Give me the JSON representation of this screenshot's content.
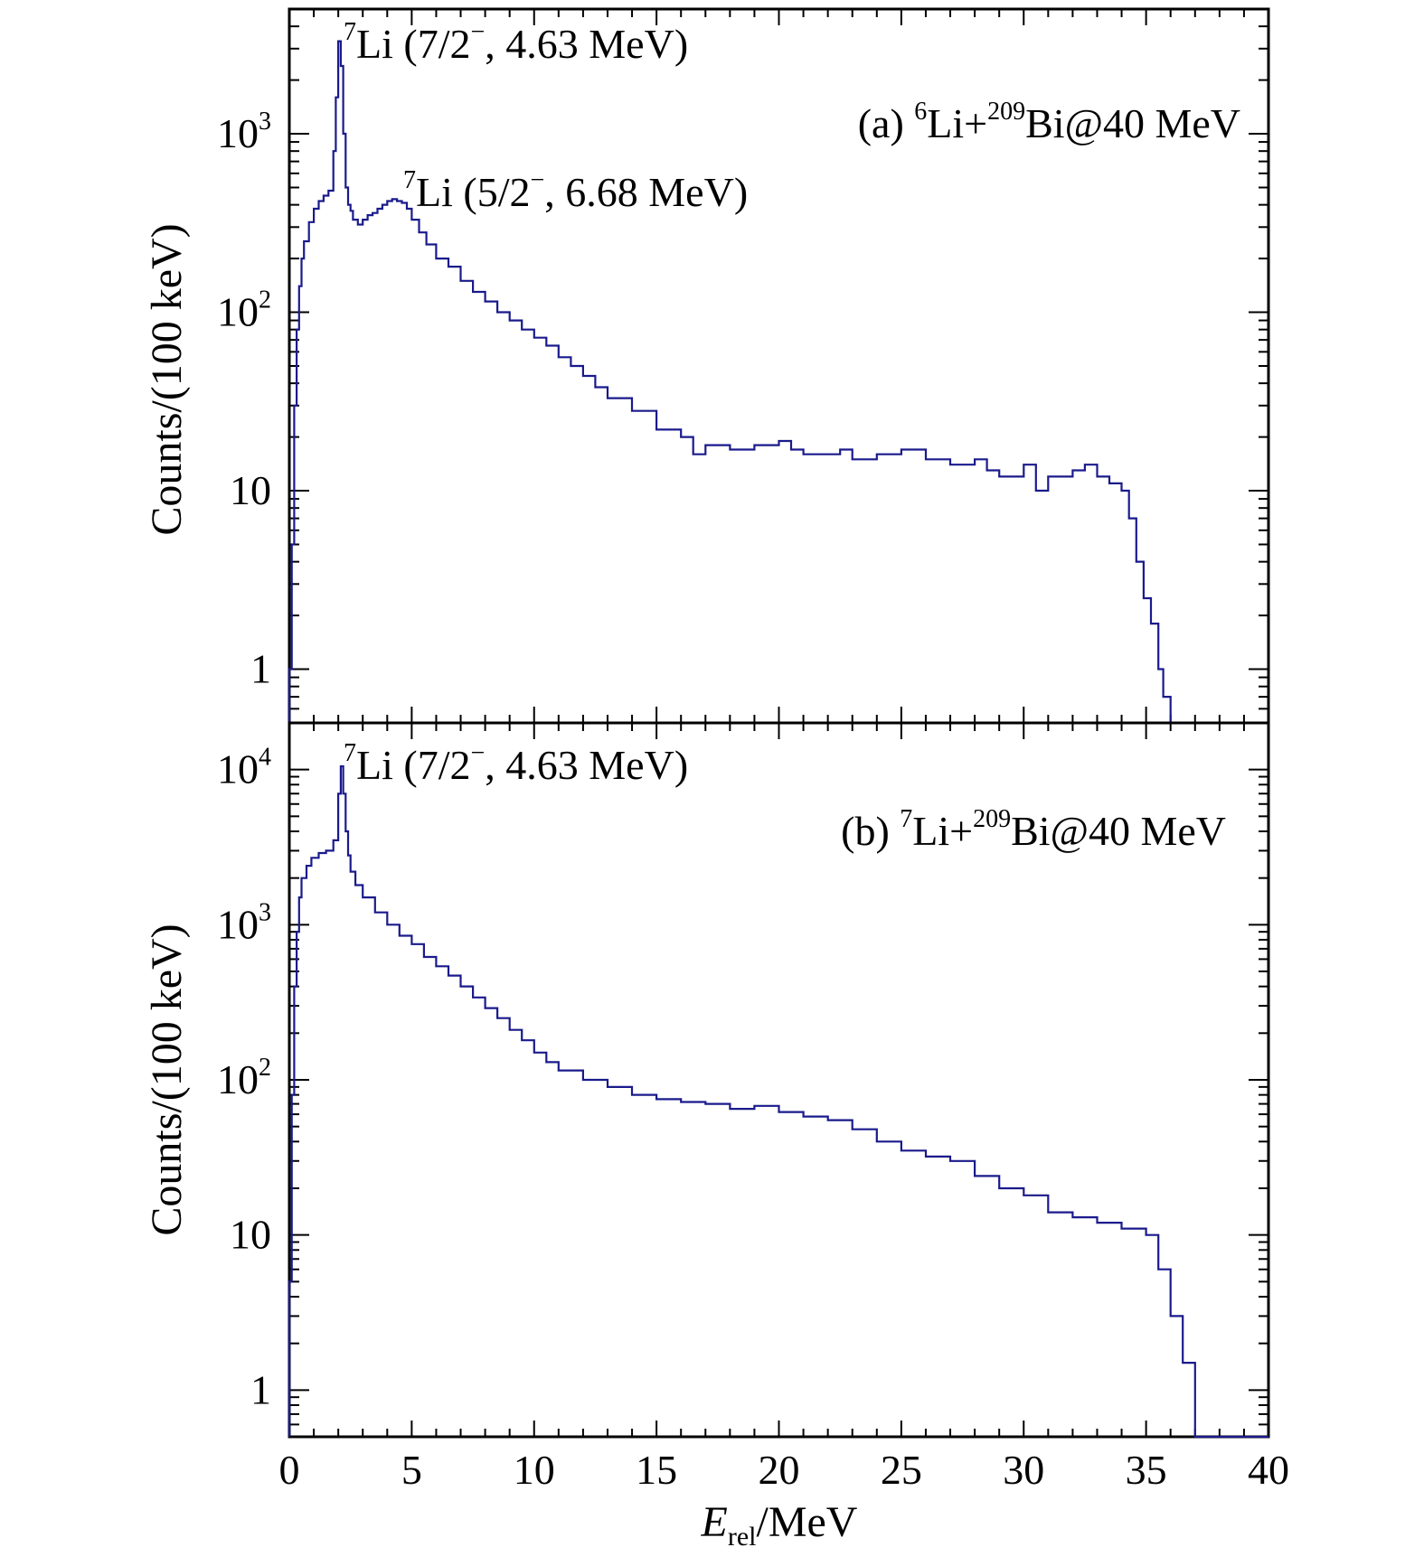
{
  "chart_data": [
    {
      "type": "histogram",
      "panel_label": "(a)",
      "reaction": {
        "projectile_mass": "6",
        "projectile": "Li",
        "target_mass": "209",
        "target": "Bi",
        "energy": "@40 MeV"
      },
      "ylabel": "Counts/(100 keV)",
      "yscale": "log",
      "ylim": [
        0.5,
        5000
      ],
      "yticks": [
        {
          "base": "1",
          "exp": ""
        },
        {
          "base": "10",
          "exp": ""
        },
        {
          "base": "10",
          "exp": "2"
        },
        {
          "base": "10",
          "exp": "3"
        }
      ],
      "ytick_values": [
        1,
        10,
        100,
        1000
      ],
      "xlim": [
        0,
        40
      ],
      "series": [
        {
          "color": "#1a1a8c",
          "x": [
            0,
            0.1,
            0.2,
            0.3,
            0.4,
            0.5,
            0.6,
            0.8,
            1.0,
            1.2,
            1.4,
            1.6,
            1.8,
            1.9,
            2.0,
            2.1,
            2.2,
            2.3,
            2.4,
            2.5,
            2.6,
            2.8,
            3.0,
            3.2,
            3.4,
            3.6,
            3.8,
            4.0,
            4.2,
            4.4,
            4.6,
            4.8,
            5.0,
            5.3,
            5.6,
            6.0,
            6.5,
            7.0,
            7.5,
            8.0,
            8.5,
            9.0,
            9.5,
            10.0,
            10.5,
            11.0,
            11.5,
            12.0,
            12.5,
            13.0,
            14.0,
            15.0,
            16.0,
            16.5,
            17.0,
            18.0,
            19.0,
            20.0,
            20.5,
            21.0,
            22.0,
            22.5,
            23.0,
            24.0,
            25.0,
            26.0,
            27.0,
            28.0,
            28.5,
            29.0,
            30.0,
            30.5,
            31.0,
            32.0,
            32.5,
            33.0,
            33.5,
            34.0,
            34.3,
            34.6,
            34.9,
            35.2,
            35.5,
            35.7,
            36.0,
            37.0,
            40.0
          ],
          "y": [
            1,
            5,
            30,
            80,
            140,
            200,
            250,
            320,
            380,
            420,
            450,
            480,
            800,
            1600,
            3300,
            2400,
            1000,
            500,
            400,
            370,
            330,
            310,
            330,
            350,
            360,
            380,
            400,
            420,
            430,
            420,
            410,
            380,
            330,
            280,
            240,
            200,
            180,
            150,
            130,
            115,
            100,
            90,
            80,
            72,
            65,
            56,
            50,
            44,
            38,
            33,
            28,
            22,
            20,
            16,
            18,
            17,
            18,
            19,
            17,
            16,
            16,
            17,
            15,
            16,
            17,
            15,
            14,
            15,
            13,
            12,
            14,
            10,
            12,
            13,
            14,
            12,
            11,
            10,
            7,
            4,
            2.5,
            1.8,
            1,
            0.7,
            0.4,
            0.4,
            0.4
          ]
        }
      ]
    },
    {
      "type": "histogram",
      "panel_label": "(b)",
      "reaction": {
        "projectile_mass": "7",
        "projectile": "Li",
        "target_mass": "209",
        "target": "Bi",
        "energy": "@40 MeV"
      },
      "ylabel": "Counts/(100 keV)",
      "yscale": "log",
      "ylim": [
        0.5,
        20000
      ],
      "yticks": [
        {
          "base": "1",
          "exp": ""
        },
        {
          "base": "10",
          "exp": ""
        },
        {
          "base": "10",
          "exp": "2"
        },
        {
          "base": "10",
          "exp": "3"
        },
        {
          "base": "10",
          "exp": "4"
        }
      ],
      "ytick_values": [
        1,
        10,
        100,
        1000,
        10000
      ],
      "xlabel": {
        "base": "E",
        "sub": "rel",
        "unit": "/MeV"
      },
      "xlim": [
        0,
        40
      ],
      "xticks": [
        0,
        5,
        10,
        15,
        20,
        25,
        30,
        35,
        40
      ],
      "series": [
        {
          "color": "#1a1a8c",
          "x": [
            0,
            0.1,
            0.2,
            0.3,
            0.4,
            0.5,
            0.7,
            0.9,
            1.2,
            1.5,
            1.8,
            2.0,
            2.1,
            2.2,
            2.3,
            2.4,
            2.5,
            2.7,
            3.0,
            3.5,
            4.0,
            4.5,
            5.0,
            5.5,
            6.0,
            6.5,
            7.0,
            7.5,
            8.0,
            8.5,
            9.0,
            9.5,
            10.0,
            10.5,
            11.0,
            12.0,
            13.0,
            14.0,
            15.0,
            16.0,
            17.0,
            18.0,
            19.0,
            20.0,
            21.0,
            22.0,
            23.0,
            24.0,
            25.0,
            26.0,
            27.0,
            28.0,
            29.0,
            30.0,
            31.0,
            32.0,
            33.0,
            34.0,
            35.0,
            35.5,
            36.0,
            36.5,
            37.0,
            40.0
          ],
          "y": [
            5,
            80,
            400,
            900,
            1500,
            2000,
            2400,
            2700,
            2900,
            3000,
            3500,
            7000,
            10500,
            7000,
            4000,
            2800,
            2200,
            1800,
            1500,
            1200,
            1000,
            850,
            750,
            620,
            540,
            470,
            400,
            340,
            290,
            250,
            210,
            180,
            150,
            130,
            115,
            100,
            90,
            80,
            75,
            72,
            70,
            65,
            68,
            62,
            58,
            55,
            48,
            40,
            35,
            32,
            30,
            24,
            20,
            18,
            14,
            13,
            12,
            11,
            10,
            6,
            3,
            1.5,
            0.4,
            0.4
          ]
        }
      ]
    }
  ],
  "annotations": {
    "a_peak1": {
      "mass": "7",
      "text": "Li (7/2",
      "sup": "−",
      "tail": ", 4.63 MeV)"
    },
    "a_peak2": {
      "mass": "7",
      "text": "Li (5/2",
      "sup": "−",
      "tail": ", 6.68 MeV)"
    },
    "b_peak1": {
      "mass": "7",
      "text": "Li (7/2",
      "sup": "−",
      "tail": ", 4.63 MeV)"
    }
  }
}
